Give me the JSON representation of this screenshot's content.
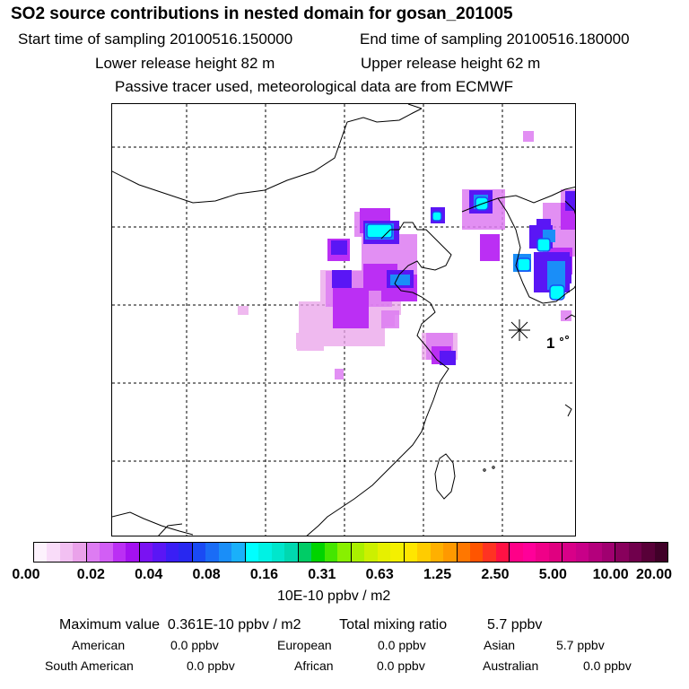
{
  "title": "SO2 source contributions in nested domain for gosan_201005",
  "sampling": {
    "start": "Start time of sampling 20100516.150000",
    "end": "End time of sampling 20100516.180000"
  },
  "release": {
    "lower": "Lower release height   82 m",
    "upper": "Upper release height   62 m"
  },
  "note": "Passive tracer used, meteorological data are from ECMWF",
  "station_label": "1",
  "colorbar": {
    "ticks": [
      "0.00",
      "0.02",
      "0.04",
      "0.08",
      "0.16",
      "0.31",
      "0.63",
      "1.25",
      "2.50",
      "5.00",
      "10.00",
      "20.00"
    ],
    "colors": [
      "#fdf2fd",
      "#f9dcf9",
      "#f2c0f2",
      "#eaa2ea",
      "#dd7cf2",
      "#d25ef5",
      "#bb2ff4",
      "#a411f0",
      "#7a12f2",
      "#5a16f5",
      "#3a1ef5",
      "#2828f0",
      "#1a4af4",
      "#1a6cf6",
      "#1a8ef8",
      "#1ab0fa",
      "#00ffff",
      "#00f2e4",
      "#00e6cc",
      "#00d8b0",
      "#00cc66",
      "#00d400",
      "#44e600",
      "#88f000",
      "#aaf000",
      "#ccf000",
      "#e6f000",
      "#f4f000",
      "#ffe600",
      "#ffcc00",
      "#ffb000",
      "#ff9900",
      "#ff7700",
      "#ff5500",
      "#ff3322",
      "#ff1144",
      "#ff0088",
      "#ff0099",
      "#f00088",
      "#e00080",
      "#d80088",
      "#c80088",
      "#b4007c",
      "#a00070",
      "#88005c",
      "#70004c",
      "#580038",
      "#400028"
    ],
    "unit": "10E-10 ppbv / m2"
  },
  "summary": {
    "max_label": "Maximum value",
    "max_value": "0.361E-10 ppbv / m2",
    "total_label": "Total mixing ratio",
    "total_value": "5.7 ppbv"
  },
  "sources": [
    {
      "name": "American",
      "value": "0.0 ppbv"
    },
    {
      "name": "European",
      "value": "0.0 ppbv"
    },
    {
      "name": "Asian",
      "value": "5.7 ppbv"
    },
    {
      "name": "South American",
      "value": "0.0 ppbv"
    },
    {
      "name": "African",
      "value": "0.0 ppbv"
    },
    {
      "name": "Australian",
      "value": "0.0 ppbv"
    }
  ]
}
